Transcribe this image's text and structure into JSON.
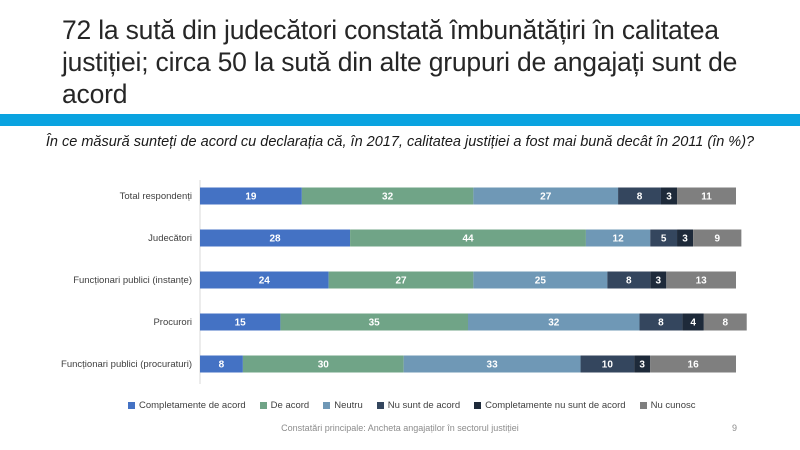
{
  "slide": {
    "title": "72 la sută din judecători constată îmbunătățiri în calitatea justiției; circa 50 la sută din alte grupuri de angajați sunt de acord",
    "footer": "Constatări principale: Ancheta angajaților în sectorul justiției",
    "page_number": "9",
    "accent_color": "#0aa3e0"
  },
  "chart_data": {
    "type": "bar",
    "orientation": "horizontal",
    "stacked": true,
    "title": "În ce măsură sunteți de acord cu declarația că, în 2017, calitatea justiției a fost mai bună decât în 2011 (în %)?",
    "categories": [
      "Total respondenți",
      "Judecători",
      "Funcționari publici (instanțe)",
      "Procurori",
      "Funcționari publici (procuraturi)"
    ],
    "xlim": [
      0,
      100
    ],
    "grid": false,
    "legend_position": "bottom",
    "series": [
      {
        "name": "Completamente de acord",
        "color": "#4472c4",
        "values": [
          19,
          28,
          24,
          15,
          8
        ]
      },
      {
        "name": "De acord",
        "color": "#70a487",
        "values": [
          32,
          44,
          27,
          35,
          30
        ]
      },
      {
        "name": "Neutru",
        "color": "#6f98b6",
        "values": [
          27,
          12,
          25,
          32,
          33
        ]
      },
      {
        "name": "Nu sunt de acord",
        "color": "#34465e",
        "values": [
          8,
          5,
          8,
          8,
          10
        ]
      },
      {
        "name": "Completamente nu sunt de acord",
        "color": "#1e2a3a",
        "values": [
          3,
          3,
          3,
          4,
          3
        ]
      },
      {
        "name": "Nu cunosc",
        "color": "#7f7f7f",
        "values": [
          11,
          9,
          13,
          8,
          16
        ]
      }
    ]
  }
}
